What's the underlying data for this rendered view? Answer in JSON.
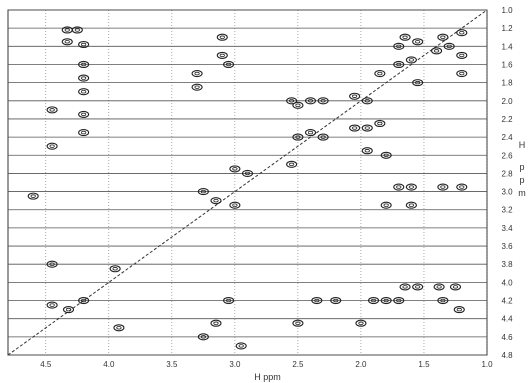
{
  "chart_data": {
    "type": "scatter",
    "title": "",
    "xlabel": "H ppm",
    "ylabel_letters": [
      "H",
      "p",
      "p",
      "m"
    ],
    "x_ticks": [
      "4.5",
      "4.0",
      "3.5",
      "3.0",
      "2.5",
      "2.0",
      "1.5",
      "1.0"
    ],
    "y_ticks": [
      "1.0",
      "1.2",
      "1.4",
      "1.6",
      "1.8",
      "2.0",
      "2.2",
      "2.4",
      "2.6",
      "2.8",
      "3.0",
      "3.2",
      "3.4",
      "3.6",
      "3.8",
      "4.0",
      "4.2",
      "4.4",
      "4.6",
      "4.8"
    ],
    "xlim": [
      4.8,
      1.0
    ],
    "ylim": [
      1.0,
      4.8
    ],
    "grid": true,
    "grid_style": "horizontal lines at each y tick, vertical lines at each x tick",
    "diagonal": true,
    "colors": {
      "contour": "#222222",
      "grid": "#555555",
      "background": "#ffffff"
    },
    "peaks": [
      {
        "x": 4.33,
        "y": 1.22
      },
      {
        "x": 4.25,
        "y": 1.22
      },
      {
        "x": 4.33,
        "y": 1.35
      },
      {
        "x": 4.2,
        "y": 1.38
      },
      {
        "x": 4.2,
        "y": 1.6
      },
      {
        "x": 4.2,
        "y": 1.75
      },
      {
        "x": 4.2,
        "y": 1.9
      },
      {
        "x": 4.2,
        "y": 2.15
      },
      {
        "x": 4.2,
        "y": 2.35
      },
      {
        "x": 4.45,
        "y": 2.1
      },
      {
        "x": 4.45,
        "y": 2.5
      },
      {
        "x": 4.6,
        "y": 3.05
      },
      {
        "x": 4.45,
        "y": 3.8
      },
      {
        "x": 4.45,
        "y": 4.25
      },
      {
        "x": 4.32,
        "y": 4.3
      },
      {
        "x": 4.2,
        "y": 4.2
      },
      {
        "x": 3.95,
        "y": 3.85
      },
      {
        "x": 3.92,
        "y": 4.5
      },
      {
        "x": 3.1,
        "y": 1.3
      },
      {
        "x": 3.1,
        "y": 1.5
      },
      {
        "x": 3.3,
        "y": 1.7
      },
      {
        "x": 3.3,
        "y": 1.85
      },
      {
        "x": 3.05,
        "y": 1.6
      },
      {
        "x": 3.0,
        "y": 2.75
      },
      {
        "x": 2.9,
        "y": 2.8
      },
      {
        "x": 3.25,
        "y": 3.0
      },
      {
        "x": 3.15,
        "y": 3.1
      },
      {
        "x": 3.0,
        "y": 3.15
      },
      {
        "x": 3.15,
        "y": 4.45
      },
      {
        "x": 3.25,
        "y": 4.6
      },
      {
        "x": 2.95,
        "y": 4.7
      },
      {
        "x": 3.05,
        "y": 4.2
      },
      {
        "x": 2.55,
        "y": 2.0
      },
      {
        "x": 2.5,
        "y": 2.05
      },
      {
        "x": 2.4,
        "y": 2.0
      },
      {
        "x": 2.3,
        "y": 2.0
      },
      {
        "x": 2.5,
        "y": 2.4
      },
      {
        "x": 2.4,
        "y": 2.35
      },
      {
        "x": 2.3,
        "y": 2.4
      },
      {
        "x": 2.55,
        "y": 2.7
      },
      {
        "x": 2.2,
        "y": 4.2
      },
      {
        "x": 2.35,
        "y": 4.2
      },
      {
        "x": 2.5,
        "y": 4.45
      },
      {
        "x": 2.0,
        "y": 4.45
      },
      {
        "x": 2.05,
        "y": 1.95
      },
      {
        "x": 1.95,
        "y": 2.0
      },
      {
        "x": 2.05,
        "y": 2.3
      },
      {
        "x": 1.95,
        "y": 2.3
      },
      {
        "x": 1.85,
        "y": 2.25
      },
      {
        "x": 1.95,
        "y": 2.55
      },
      {
        "x": 1.8,
        "y": 2.6
      },
      {
        "x": 1.85,
        "y": 1.7
      },
      {
        "x": 1.7,
        "y": 1.6
      },
      {
        "x": 1.6,
        "y": 1.55
      },
      {
        "x": 1.55,
        "y": 1.8
      },
      {
        "x": 1.55,
        "y": 1.35
      },
      {
        "x": 1.65,
        "y": 1.3
      },
      {
        "x": 1.7,
        "y": 1.4
      },
      {
        "x": 1.8,
        "y": 3.15
      },
      {
        "x": 1.6,
        "y": 3.15
      },
      {
        "x": 1.7,
        "y": 2.95
      },
      {
        "x": 1.6,
        "y": 2.95
      },
      {
        "x": 1.9,
        "y": 4.2
      },
      {
        "x": 1.8,
        "y": 4.2
      },
      {
        "x": 1.7,
        "y": 4.2
      },
      {
        "x": 1.65,
        "y": 4.05
      },
      {
        "x": 1.55,
        "y": 4.05
      },
      {
        "x": 1.35,
        "y": 1.3
      },
      {
        "x": 1.3,
        "y": 1.4
      },
      {
        "x": 1.4,
        "y": 1.45
      },
      {
        "x": 1.35,
        "y": 2.95
      },
      {
        "x": 1.35,
        "y": 4.2
      },
      {
        "x": 1.38,
        "y": 4.05
      },
      {
        "x": 1.2,
        "y": 1.25
      },
      {
        "x": 1.2,
        "y": 1.5
      },
      {
        "x": 1.2,
        "y": 1.7
      },
      {
        "x": 1.2,
        "y": 2.95
      },
      {
        "x": 1.25,
        "y": 4.05
      },
      {
        "x": 1.22,
        "y": 4.3
      }
    ]
  }
}
